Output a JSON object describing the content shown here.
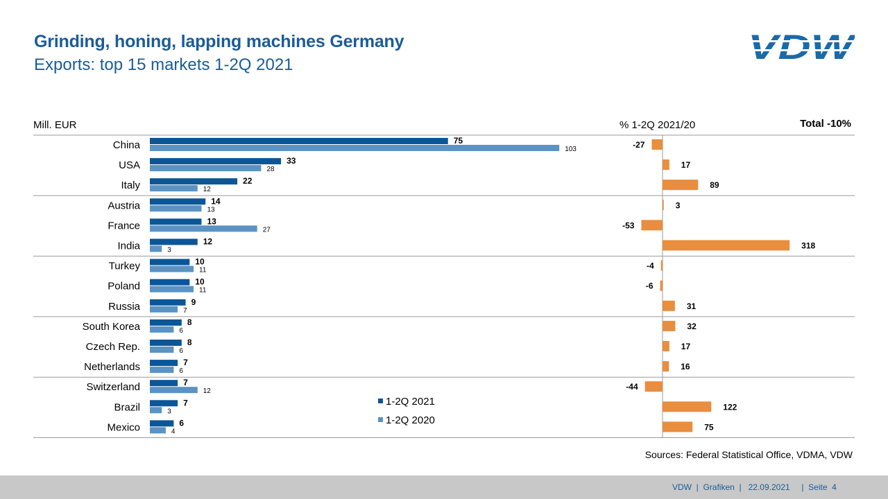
{
  "header": {
    "title": "Grinding, honing, lapping machines Germany",
    "subtitle": "Exports: top 15 markets 1-2Q 2021",
    "logo_text": "VDW"
  },
  "labels": {
    "unit": "Mill. EUR",
    "pct_header": "% 1-2Q 2021/20",
    "total": "Total -10%"
  },
  "chart_data": {
    "type": "bar",
    "orientation": "horizontal",
    "categories": [
      "China",
      "USA",
      "Italy",
      "Austria",
      "France",
      "India",
      "Turkey",
      "Poland",
      "Russia",
      "South Korea",
      "Czech Rep.",
      "Netherlands",
      "Switzerland",
      "Brazil",
      "Mexico"
    ],
    "series": [
      {
        "name": "1-2Q 2021",
        "color": "#0b5697",
        "values": [
          75,
          33,
          22,
          14,
          13,
          12,
          10,
          10,
          9,
          8,
          8,
          7,
          7,
          7,
          6
        ]
      },
      {
        "name": "1-2Q 2020",
        "color": "#5a93c4",
        "values": [
          103,
          28,
          12,
          13,
          27,
          3,
          11,
          11,
          7,
          6,
          6,
          6,
          12,
          3,
          4
        ]
      }
    ],
    "change_pct": {
      "color": "#e98d3e",
      "values": [
        -27,
        17,
        89,
        3,
        -53,
        318,
        -4,
        -6,
        31,
        32,
        17,
        16,
        -44,
        122,
        75
      ]
    },
    "legend": "bottom-center",
    "group_size": 3
  },
  "source": "Sources: Federal Statistical Office, VDMA, VDW",
  "footer": {
    "org": "VDW",
    "section": "Grafiken",
    "date": "22.09.2021",
    "page_label": "Seite",
    "page_number": "4"
  }
}
